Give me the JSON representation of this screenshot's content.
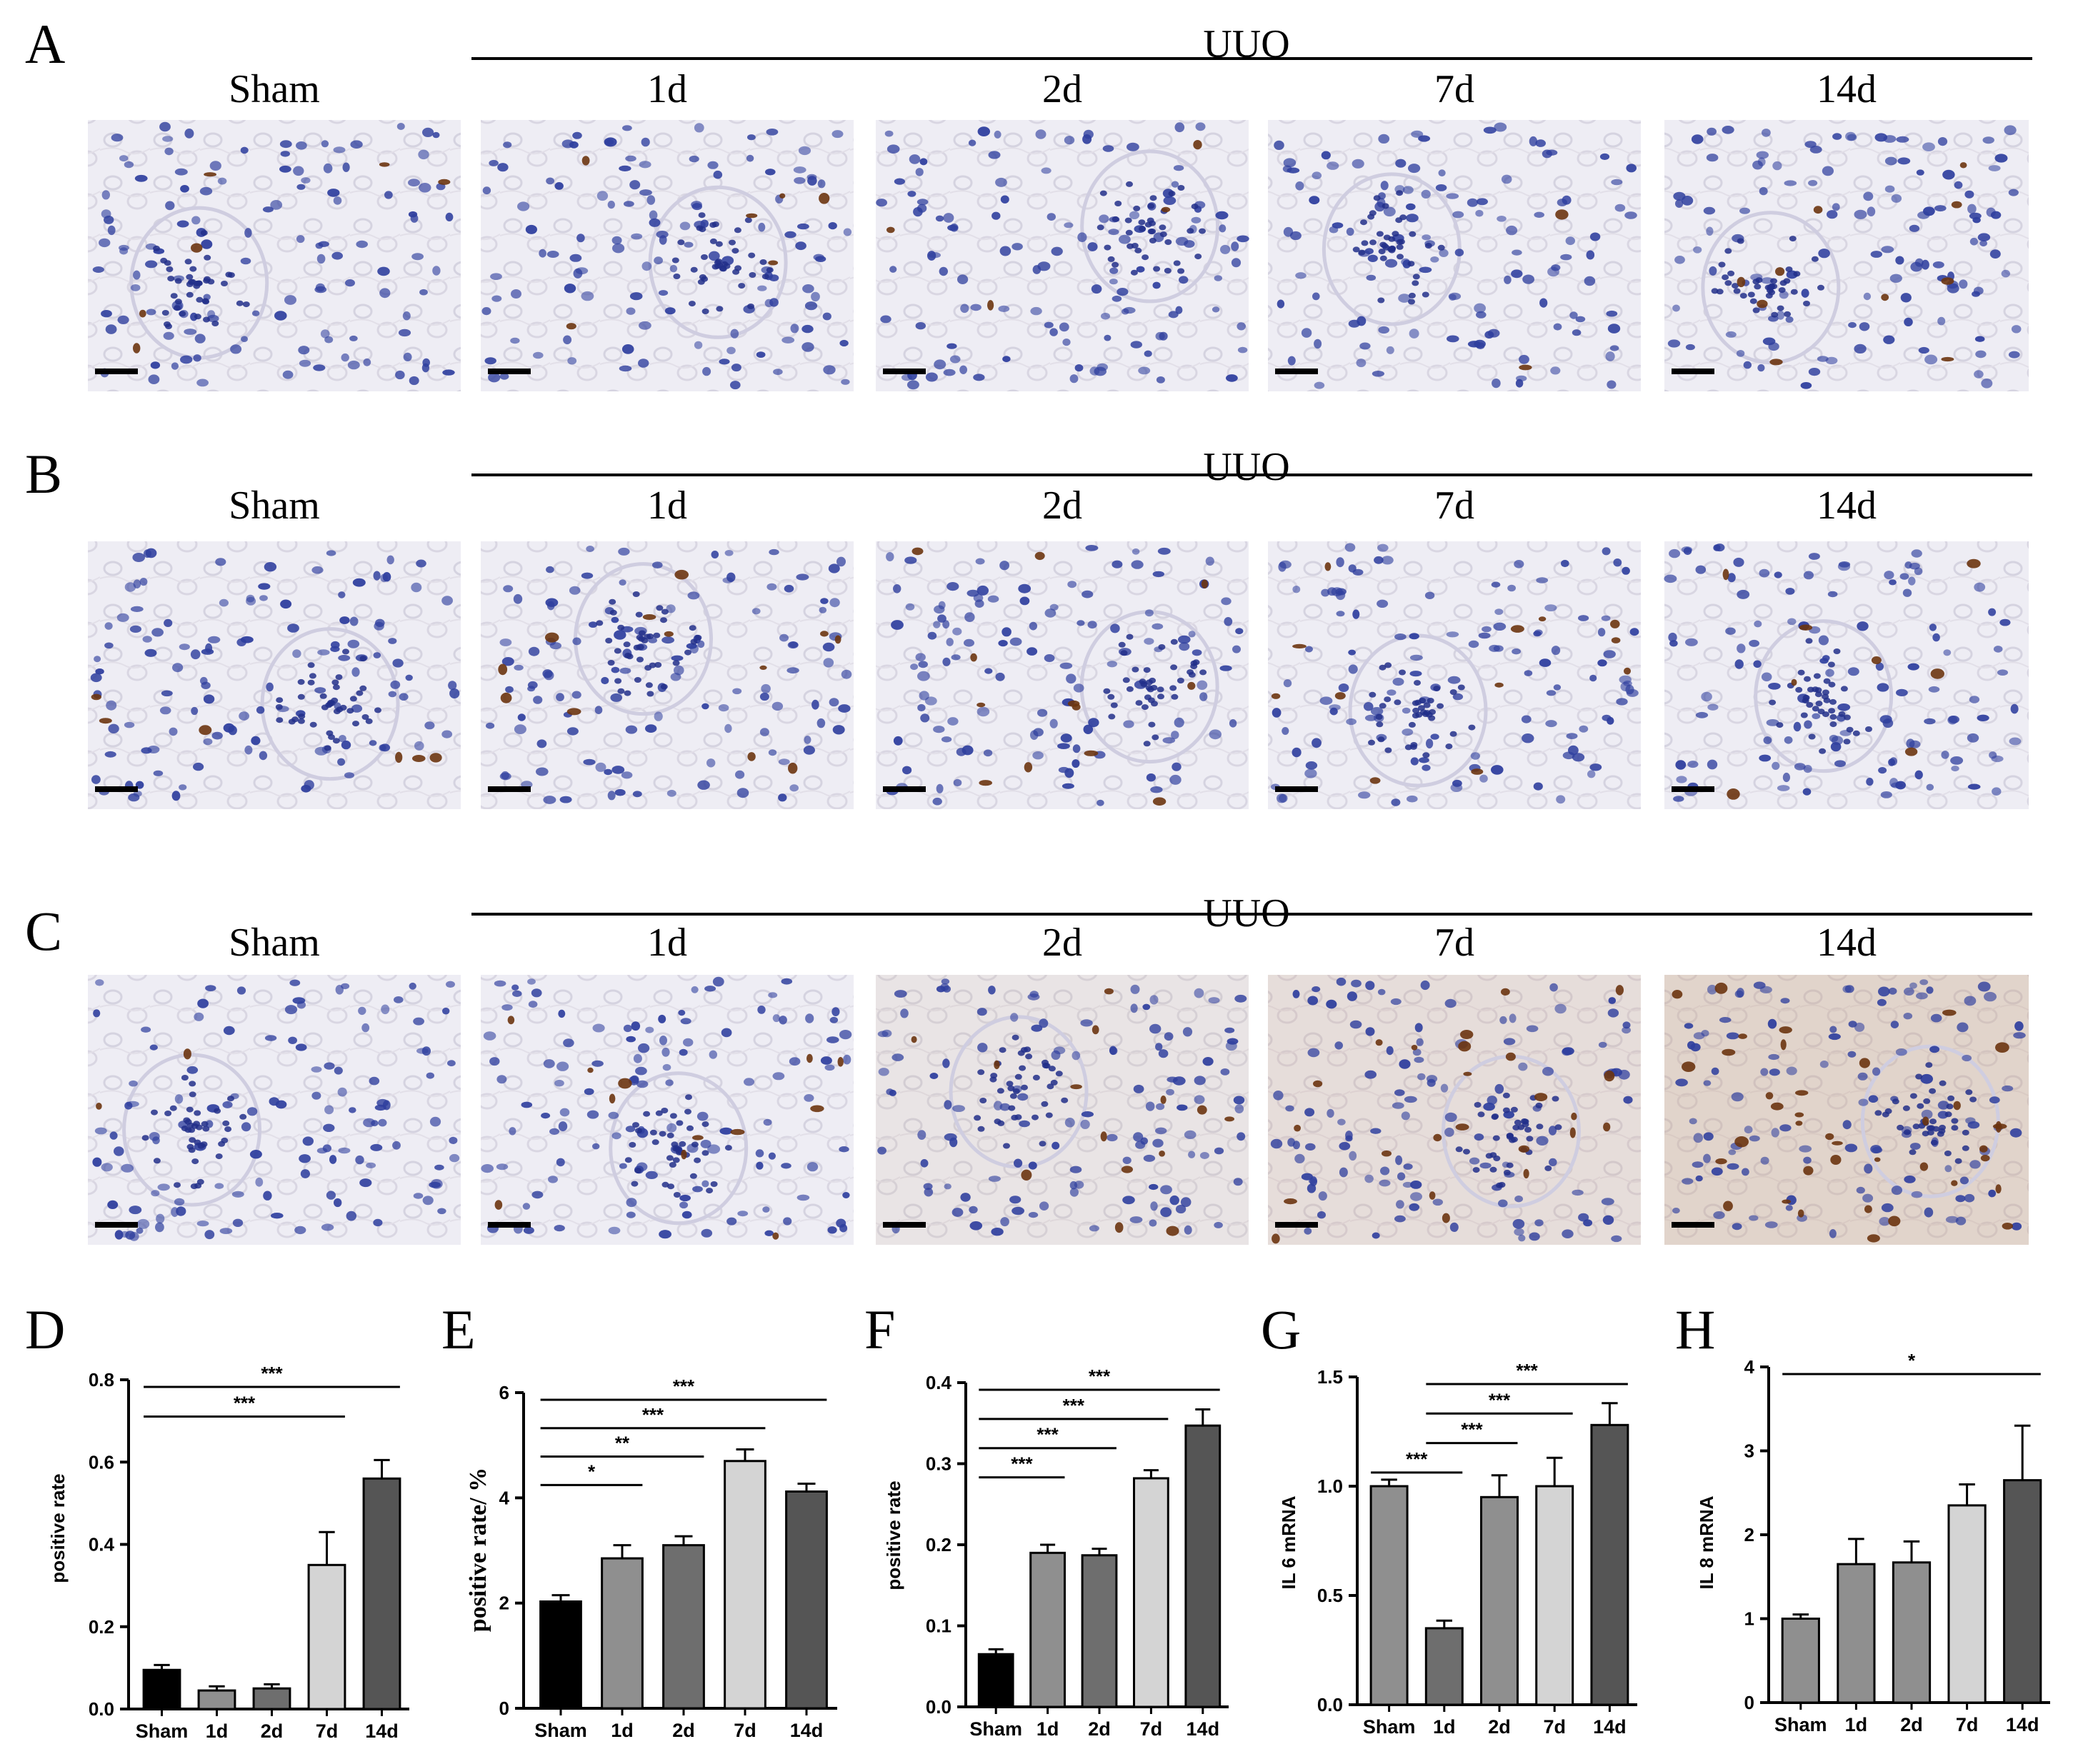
{
  "figure": {
    "panel_letters": [
      "A",
      "B",
      "C",
      "D",
      "E",
      "F",
      "G",
      "H"
    ],
    "histology_rows": [
      {
        "letter": "A",
        "group_label": "UUO",
        "columns": [
          "Sham",
          "1d",
          "2d",
          "7d",
          "14d"
        ],
        "stain_intensity": [
          0.15,
          0.15,
          0.1,
          0.05,
          0.25
        ]
      },
      {
        "letter": "B",
        "group_label": "UUO",
        "columns": [
          "Sham",
          "1d",
          "2d",
          "7d",
          "14d"
        ],
        "stain_intensity": [
          0.15,
          0.3,
          0.3,
          0.3,
          0.2
        ]
      },
      {
        "letter": "C",
        "group_label": "UUO",
        "columns": [
          "Sham",
          "1d",
          "2d",
          "7d",
          "14d"
        ],
        "stain_intensity": [
          0.05,
          0.3,
          0.35,
          0.6,
          0.95
        ]
      }
    ],
    "colors": {
      "hematoxylin": "#2f3f9e",
      "dab": "#6b3410",
      "sham_bar": "#000000"
    }
  },
  "chart_data": [
    {
      "type": "bar",
      "panel": "D",
      "categories": [
        "Sham",
        "1d",
        "2d",
        "7d",
        "14d"
      ],
      "values": [
        0.095,
        0.045,
        0.05,
        0.35,
        0.56
      ],
      "errors": [
        0.012,
        0.01,
        0.01,
        0.08,
        0.045
      ],
      "colors": [
        "#000000",
        "#8f8f8f",
        "#6e6e6e",
        "#d4d4d4",
        "#555555"
      ],
      "ylabel": "positive rate",
      "ylim": [
        0,
        0.8
      ],
      "yticks": [
        "0.0",
        "0.2",
        "0.4",
        "0.6",
        "0.8"
      ],
      "significance": [
        {
          "from": "Sham",
          "to": "14d",
          "label": "***"
        },
        {
          "from": "Sham",
          "to": "7d",
          "label": "***"
        }
      ]
    },
    {
      "type": "bar",
      "panel": "E",
      "categories": [
        "Sham",
        "1d",
        "2d",
        "7d",
        "14d"
      ],
      "values": [
        2.03,
        2.85,
        3.1,
        4.7,
        4.12
      ],
      "errors": [
        0.12,
        0.25,
        0.17,
        0.22,
        0.15
      ],
      "colors": [
        "#000000",
        "#8f8f8f",
        "#6e6e6e",
        "#d4d4d4",
        "#555555"
      ],
      "ylabel": "positive rate/ %",
      "ylim": [
        0,
        6
      ],
      "yticks": [
        "0",
        "2",
        "4",
        "6"
      ],
      "significance": [
        {
          "from": "Sham",
          "to": "14d",
          "label": "***"
        },
        {
          "from": "Sham",
          "to": "7d",
          "label": "***"
        },
        {
          "from": "Sham",
          "to": "2d",
          "label": "**"
        },
        {
          "from": "Sham",
          "to": "1d",
          "label": "*"
        }
      ]
    },
    {
      "type": "bar",
      "panel": "F",
      "categories": [
        "Sham",
        "1d",
        "2d",
        "7d",
        "14d"
      ],
      "values": [
        0.065,
        0.19,
        0.187,
        0.282,
        0.347
      ],
      "errors": [
        0.006,
        0.01,
        0.008,
        0.01,
        0.02
      ],
      "colors": [
        "#000000",
        "#8f8f8f",
        "#6e6e6e",
        "#d4d4d4",
        "#555555"
      ],
      "ylabel": "positive rate",
      "ylim": [
        0,
        0.4
      ],
      "yticks": [
        "0.0",
        "0.1",
        "0.2",
        "0.3",
        "0.4"
      ],
      "significance": [
        {
          "from": "Sham",
          "to": "14d",
          "label": "***"
        },
        {
          "from": "Sham",
          "to": "7d",
          "label": "***"
        },
        {
          "from": "Sham",
          "to": "2d",
          "label": "***"
        },
        {
          "from": "Sham",
          "to": "1d",
          "label": "***"
        }
      ]
    },
    {
      "type": "bar",
      "panel": "G",
      "categories": [
        "Sham",
        "1d",
        "2d",
        "7d",
        "14d"
      ],
      "values": [
        1.0,
        0.35,
        0.95,
        1.0,
        1.28
      ],
      "errors": [
        0.03,
        0.035,
        0.1,
        0.13,
        0.1
      ],
      "colors": [
        "#8f8f8f",
        "#6e6e6e",
        "#8f8f8f",
        "#d4d4d4",
        "#555555"
      ],
      "ylabel": "IL 6 mRNA",
      "ylim": [
        0,
        1.5
      ],
      "yticks": [
        "0.0",
        "0.5",
        "1.0",
        "1.5"
      ],
      "significance": [
        {
          "from": "1d",
          "to": "14d",
          "label": "***"
        },
        {
          "from": "1d",
          "to": "7d",
          "label": "***"
        },
        {
          "from": "1d",
          "to": "2d",
          "label": "***"
        },
        {
          "from": "Sham",
          "to": "1d",
          "label": "***"
        }
      ]
    },
    {
      "type": "bar",
      "panel": "H",
      "categories": [
        "Sham",
        "1d",
        "2d",
        "7d",
        "14d"
      ],
      "values": [
        1.0,
        1.65,
        1.67,
        2.35,
        2.65
      ],
      "errors": [
        0.05,
        0.3,
        0.25,
        0.25,
        0.65
      ],
      "colors": [
        "#8f8f8f",
        "#8f8f8f",
        "#8f8f8f",
        "#d4d4d4",
        "#555555"
      ],
      "ylabel": "IL 8 mRNA",
      "ylim": [
        0,
        4
      ],
      "yticks": [
        "0",
        "1",
        "2",
        "3",
        "4"
      ],
      "significance": [
        {
          "from": "Sham",
          "to": "14d",
          "label": "*"
        }
      ]
    }
  ]
}
